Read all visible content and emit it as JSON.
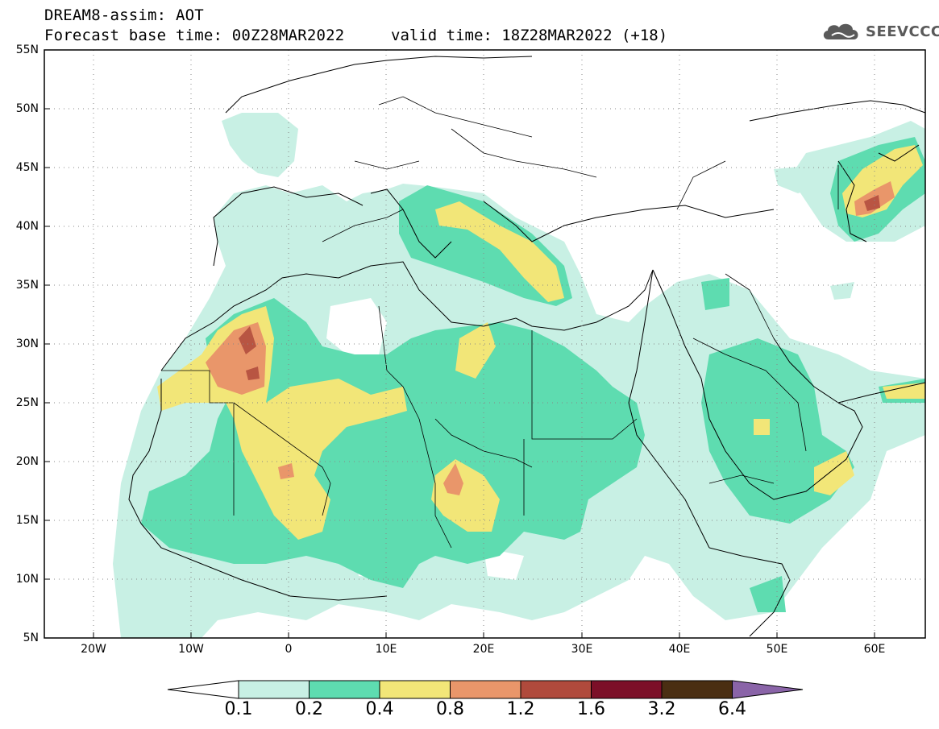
{
  "header": {
    "line1": "DREAM8-assim: AOT",
    "line2": "Forecast base time: 00Z28MAR2022",
    "valid": "valid time: 18Z28MAR2022 (+18)"
  },
  "logo": {
    "text": "SEEVCCC",
    "icon": "cloud-icon",
    "color": "#5a5a5a"
  },
  "map": {
    "lon_range": [
      -25,
      65
    ],
    "lat_range": [
      5,
      55
    ],
    "lat_ticks": [
      "55N",
      "50N",
      "45N",
      "40N",
      "35N",
      "30N",
      "25N",
      "20N",
      "15N",
      "10N",
      "5N"
    ],
    "lon_ticks": [
      "20W",
      "10W",
      "0",
      "10E",
      "20E",
      "30E",
      "40E",
      "50E",
      "60E"
    ],
    "grid": "dotted"
  },
  "colorbar": {
    "colors": [
      "#ffffff",
      "#c8f0e4",
      "#5edcb0",
      "#f2e678",
      "#e9966a",
      "#b04a3c",
      "#7c0f28",
      "#4a2e12",
      "#8a64a8"
    ],
    "labels": [
      "0.1",
      "0.2",
      "0.4",
      "0.8",
      "1.2",
      "1.6",
      "3.2",
      "6.4"
    ]
  }
}
